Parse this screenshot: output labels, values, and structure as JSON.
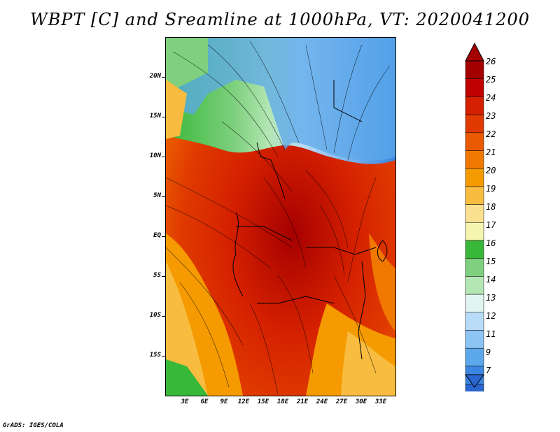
{
  "title": "WBPT [C] and Sreamline at 1000hPa, VT: 2020041200",
  "footer": "GrADS: IGES/COLA",
  "lat_labels": [
    "20N",
    "15N",
    "10N",
    "5N",
    "EQ",
    "5S",
    "10S",
    "15S"
  ],
  "lon_labels": [
    "3E",
    "6E",
    "9E",
    "12E",
    "15E",
    "18E",
    "21E",
    "24E",
    "27E",
    "30E",
    "33E"
  ],
  "colorbar": {
    "levels": [
      "26",
      "25",
      "24",
      "23",
      "22",
      "21",
      "20",
      "19",
      "18",
      "17",
      "16",
      "15",
      "14",
      "13",
      "12",
      "11",
      "9",
      "7"
    ],
    "colors": [
      "#a50000",
      "#c00000",
      "#d42000",
      "#e03a00",
      "#ea5a00",
      "#f07800",
      "#f59a00",
      "#f8bd40",
      "#fbe090",
      "#f5f5b0",
      "#38b838",
      "#7ed07e",
      "#b4e6b4",
      "#e0f4f0",
      "#b8dcf8",
      "#8cc4f4",
      "#5ca8ea",
      "#3a86e0",
      "#2a66d0"
    ]
  },
  "icons": {
    "colorbar_top": "triangle-up",
    "colorbar_bottom": "triangle-down"
  }
}
